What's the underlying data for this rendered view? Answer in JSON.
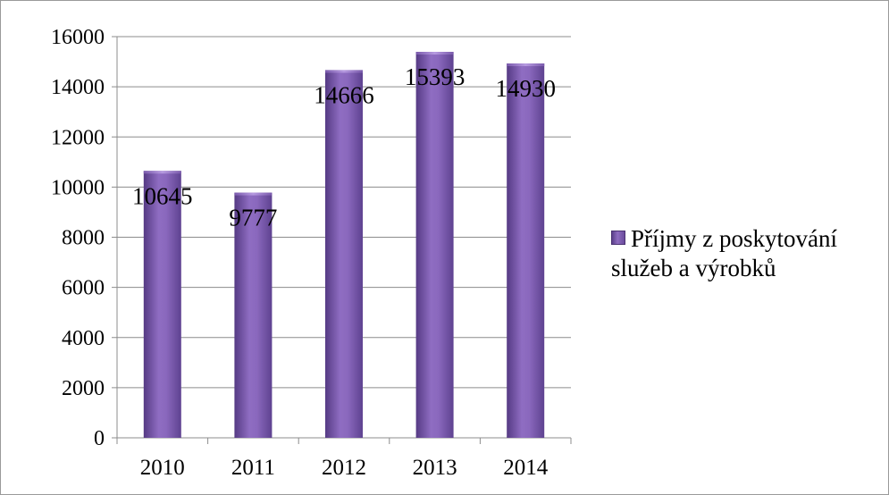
{
  "chart_data": {
    "type": "bar",
    "categories": [
      "2010",
      "2011",
      "2012",
      "2013",
      "2014"
    ],
    "series": [
      {
        "name": "Příjmy z poskytování služeb a výrobků",
        "values": [
          10645,
          9777,
          14666,
          15393,
          14930
        ],
        "color": "#7a5aa8"
      }
    ],
    "data_labels": [
      "10645",
      "9777",
      "14666",
      "15393",
      "14930"
    ],
    "yticks": [
      "0",
      "2000",
      "4000",
      "6000",
      "8000",
      "10000",
      "12000",
      "14000",
      "16000"
    ],
    "ylim": [
      0,
      16000
    ],
    "grid": true,
    "legend_position": "right"
  },
  "legend": {
    "line1": "Příjmy z poskytování",
    "line2": "služeb a výrobků"
  }
}
